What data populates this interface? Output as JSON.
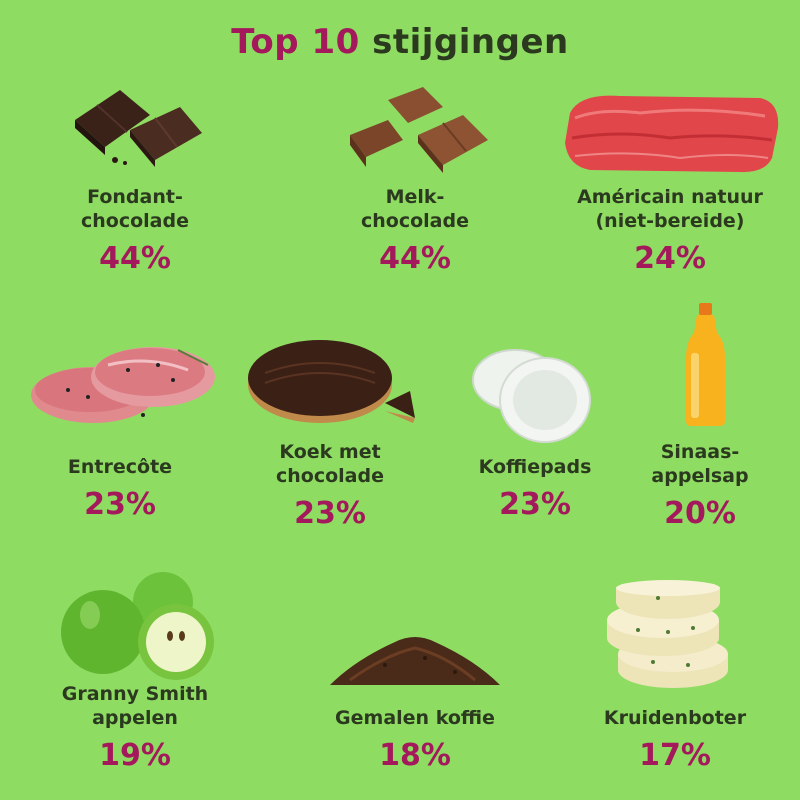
{
  "title": {
    "accent": "Top 10",
    "rest": "stijgingen"
  },
  "items": [
    {
      "label": "Fondant-\nchocolade",
      "pct": "44%",
      "icon": "dark-chocolate-icon"
    },
    {
      "label": "Melk-\nchocolade",
      "pct": "44%",
      "icon": "milk-chocolate-icon"
    },
    {
      "label": "Américain natuur\n(niet-bereide)",
      "pct": "24%",
      "icon": "minced-meat-icon"
    },
    {
      "label": "Entrecôte",
      "pct": "23%",
      "icon": "steak-icon"
    },
    {
      "label": "Koek met\nchocolade",
      "pct": "23%",
      "icon": "chocolate-biscuit-icon"
    },
    {
      "label": "Koffiepads",
      "pct": "23%",
      "icon": "coffee-pads-icon"
    },
    {
      "label": "Sinaas-\nappelsap",
      "pct": "20%",
      "icon": "orange-juice-icon"
    },
    {
      "label": "Granny Smith\nappelen",
      "pct": "19%",
      "icon": "green-apples-icon"
    },
    {
      "label": "Gemalen koffie",
      "pct": "18%",
      "icon": "ground-coffee-icon"
    },
    {
      "label": "Kruidenboter",
      "pct": "17%",
      "icon": "herb-butter-icon"
    }
  ]
}
